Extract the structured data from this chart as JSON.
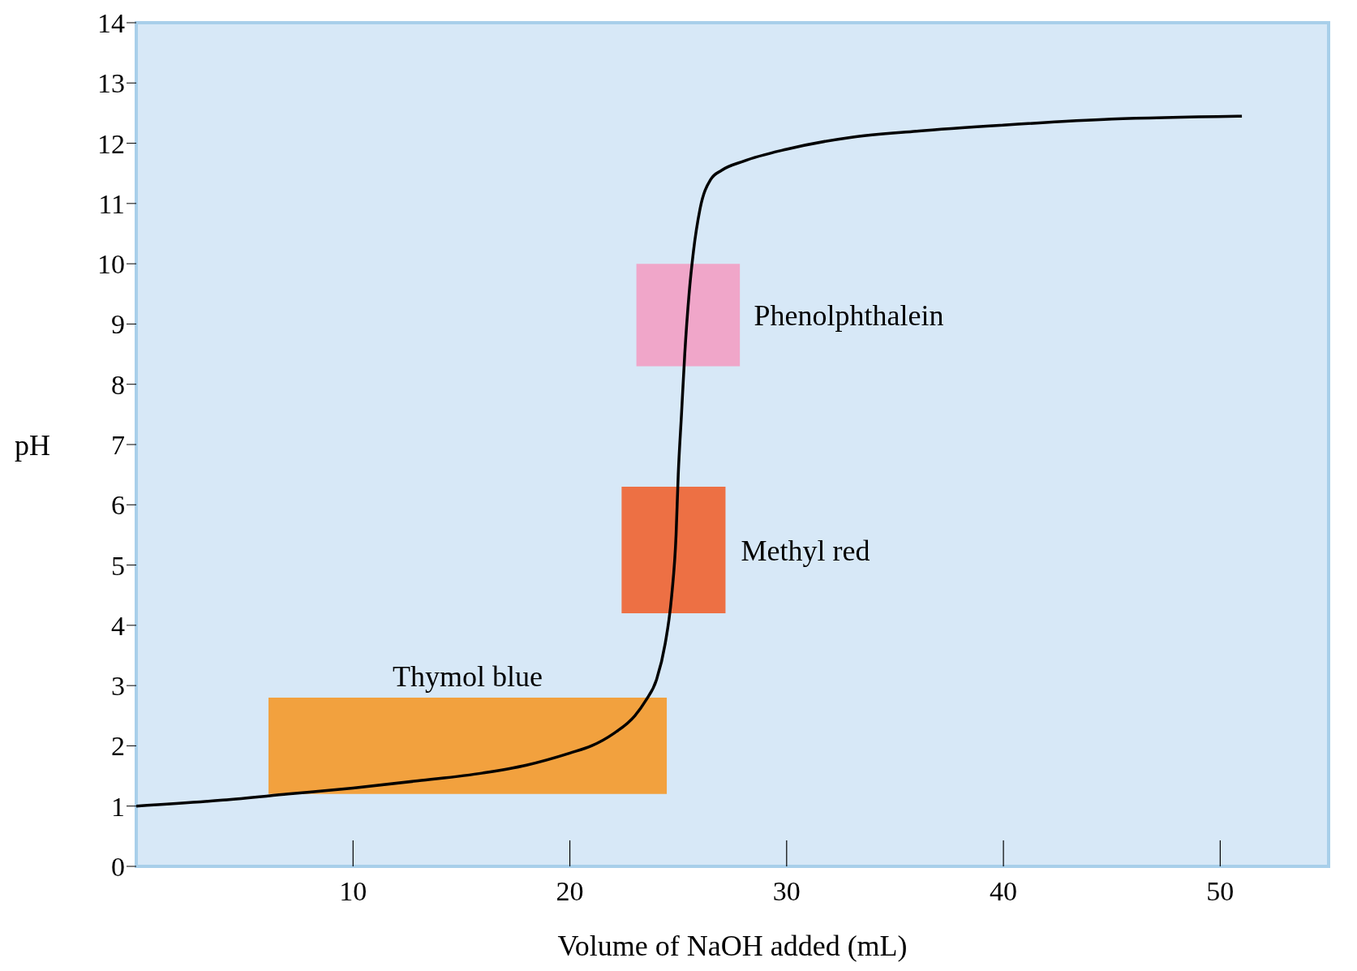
{
  "chart_data": {
    "type": "line",
    "xlabel": "Volume of NaOH added (mL)",
    "ylabel": "pH",
    "xlim": [
      0,
      55
    ],
    "xticks": [
      10,
      20,
      30,
      40,
      50
    ],
    "ylim": [
      0,
      14
    ],
    "yticks": [
      0,
      1,
      2,
      3,
      4,
      5,
      6,
      7,
      8,
      9,
      10,
      11,
      12,
      13,
      14
    ],
    "legend": false,
    "marker": "none",
    "line_style": "solid",
    "x": [
      0,
      4,
      7,
      10,
      13,
      16,
      18,
      20,
      21,
      22,
      23,
      23.5,
      24,
      24.4,
      24.7,
      24.9,
      25,
      25.15,
      25.3,
      25.5,
      25.7,
      26,
      26.5,
      27,
      28,
      30,
      33,
      36,
      40,
      45,
      51
    ],
    "series": [
      {
        "color": "#000000",
        "values": [
          1.0,
          1.1,
          1.2,
          1.3,
          1.42,
          1.55,
          1.68,
          1.88,
          2.0,
          2.2,
          2.5,
          2.75,
          3.1,
          3.7,
          4.5,
          5.5,
          6.5,
          7.5,
          8.5,
          9.5,
          10.2,
          10.9,
          11.4,
          11.55,
          11.7,
          11.9,
          12.1,
          12.2,
          12.3,
          12.4,
          12.45
        ]
      }
    ],
    "bands": [
      {
        "axis": "y",
        "from": 1.2,
        "to": 2.8,
        "label": "Thymol blue",
        "color": "#f7941d"
      },
      {
        "axis": "y",
        "from": 4.2,
        "to": 6.3,
        "label": "Methyl red",
        "color": "#f15a24"
      },
      {
        "axis": "y",
        "from": 8.3,
        "to": 10.0,
        "label": "Phenolphthalein",
        "color": "#f49ac1"
      }
    ]
  }
}
